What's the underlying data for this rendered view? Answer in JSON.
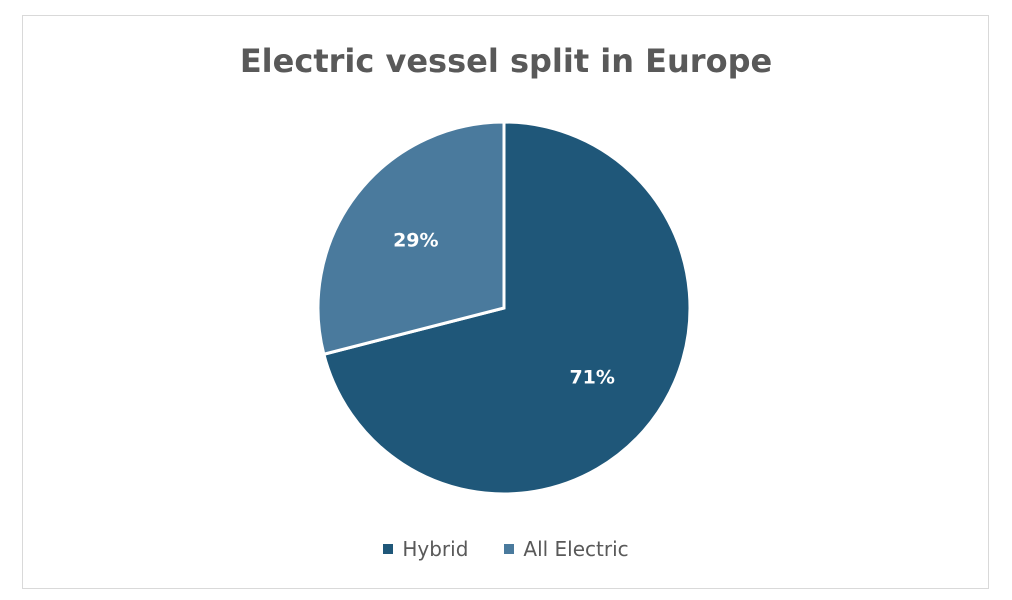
{
  "chart_data": {
    "type": "pie",
    "title": "Electric vessel split in Europe",
    "categories": [
      "Hybrid",
      "All Electric"
    ],
    "values": [
      71,
      29
    ],
    "data_labels": [
      "71%",
      "29%"
    ],
    "colors": [
      "#1F5779",
      "#4A7A9D"
    ],
    "legend_position": "bottom"
  }
}
